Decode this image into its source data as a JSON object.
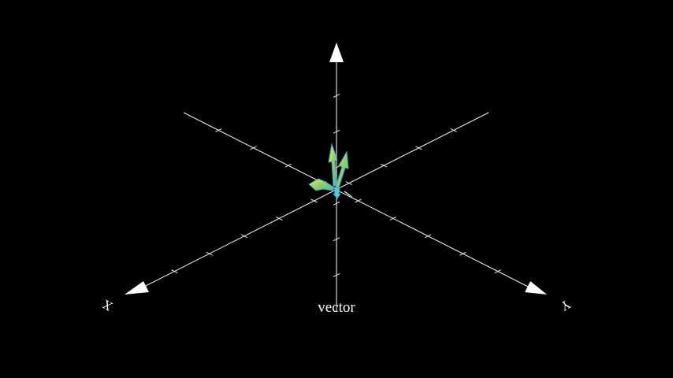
{
  "caption": "vector",
  "axes": {
    "x_label": "X",
    "y_label": "Y"
  },
  "colors": {
    "background": "#000000",
    "axis": "#e8e8e8",
    "arrow_fill_light": "#b5e07a",
    "arrow_fill_mid": "#7cc26a",
    "arrow_edge": "#3fa8c8"
  }
}
